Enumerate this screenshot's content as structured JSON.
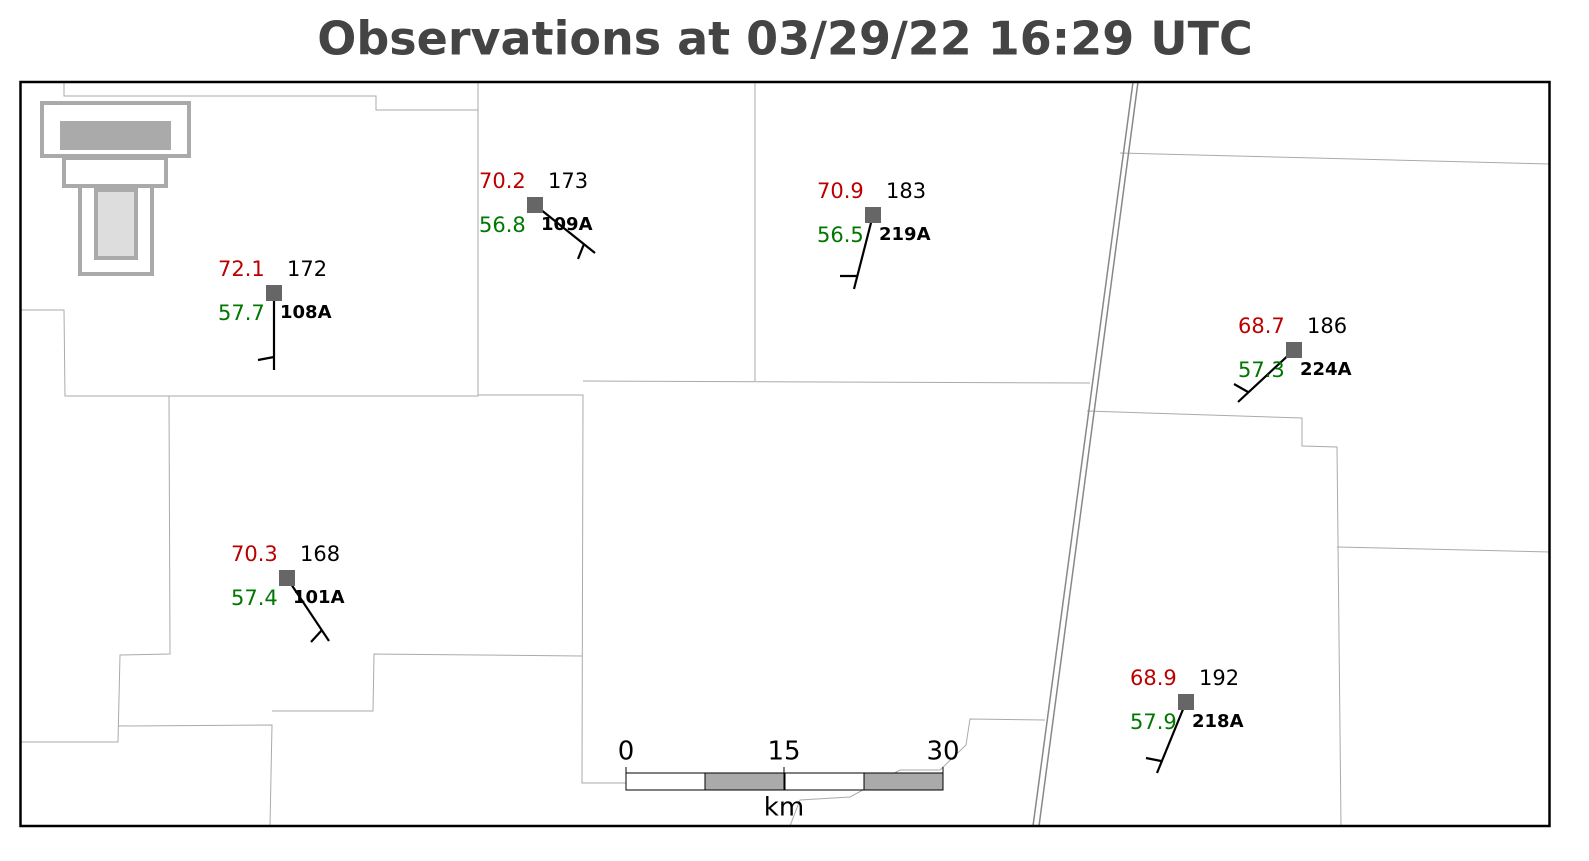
{
  "title": "Observations at 03/29/22 16:29 UTC",
  "stations": [
    {
      "id": "108A",
      "temperature": 72.1,
      "dewpoint": 57.7,
      "pressure": 172
    },
    {
      "id": "109A",
      "temperature": 70.2,
      "dewpoint": 56.8,
      "pressure": 173
    },
    {
      "id": "219A",
      "temperature": 70.9,
      "dewpoint": 56.5,
      "pressure": 183
    },
    {
      "id": "224A",
      "temperature": 68.7,
      "dewpoint": 57.3,
      "pressure": 186
    },
    {
      "id": "101A",
      "temperature": 70.3,
      "dewpoint": 57.4,
      "pressure": 168
    },
    {
      "id": "218A",
      "temperature": 68.9,
      "dewpoint": 57.9,
      "pressure": 192
    }
  ],
  "scale_bar": {
    "ticks": [
      0,
      15,
      30
    ],
    "unit": "km"
  }
}
